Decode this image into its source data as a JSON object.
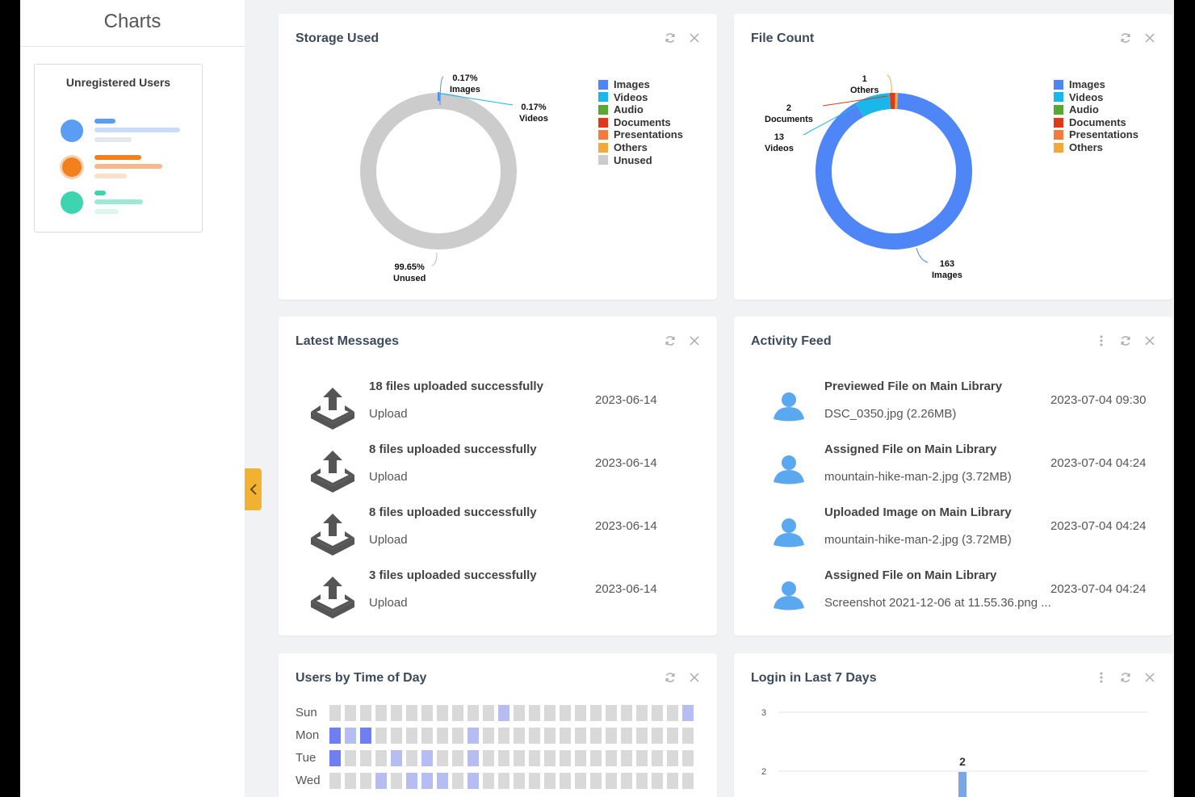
{
  "sidebar": {
    "title": "Charts",
    "card_title": "Unregistered Users"
  },
  "colors": {
    "images": "#4f86f7",
    "videos": "#1ab7ea",
    "audio": "#58a832",
    "documents": "#dc3a1a",
    "presentations": "#f77a3d",
    "others": "#f2a93b",
    "unused": "#cccccc",
    "accent_tab": "#f0b230",
    "heat_low": "#b6bdf3",
    "heat_high": "#6f7ef0"
  },
  "storage": {
    "title": "Storage Used",
    "legend": [
      "Images",
      "Videos",
      "Audio",
      "Documents",
      "Presentations",
      "Others",
      "Unused"
    ],
    "labels": {
      "images_pct": "0.17%",
      "images_name": "Images",
      "videos_pct": "0.17%",
      "videos_name": "Videos",
      "unused_pct": "99.65%",
      "unused_name": "Unused"
    }
  },
  "filecount": {
    "title": "File Count",
    "legend": [
      "Images",
      "Videos",
      "Audio",
      "Documents",
      "Presentations",
      "Others"
    ],
    "labels": {
      "others_n": "1",
      "others_name": "Others",
      "docs_n": "2",
      "docs_name": "Documents",
      "videos_n": "13",
      "videos_name": "Videos",
      "images_n": "163",
      "images_name": "Images"
    }
  },
  "chart_data": [
    {
      "type": "pie",
      "title": "Storage Used",
      "categories": [
        "Images",
        "Videos",
        "Unused"
      ],
      "values": [
        0.17,
        0.17,
        99.65
      ],
      "unit": "%"
    },
    {
      "type": "pie",
      "title": "File Count",
      "categories": [
        "Images",
        "Videos",
        "Documents",
        "Others"
      ],
      "values": [
        163,
        13,
        2,
        1
      ]
    }
  ],
  "messages": {
    "title": "Latest Messages",
    "items": [
      {
        "title": "18 files uploaded successfully",
        "sub": "Upload",
        "date": "2023-06-14"
      },
      {
        "title": "8 files uploaded successfully",
        "sub": "Upload",
        "date": "2023-06-14"
      },
      {
        "title": "8 files uploaded successfully",
        "sub": "Upload",
        "date": "2023-06-14"
      },
      {
        "title": "3 files uploaded successfully",
        "sub": "Upload",
        "date": "2023-06-14"
      }
    ]
  },
  "activity": {
    "title": "Activity Feed",
    "items": [
      {
        "title": "Previewed File on Main Library",
        "sub": "DSC_0350.jpg (2.26MB)",
        "date": "2023-07-04 09:30"
      },
      {
        "title": "Assigned File on Main Library",
        "sub": "mountain-hike-man-2.jpg (3.72MB)",
        "date": "2023-07-04 04:24"
      },
      {
        "title": "Uploaded Image on Main Library",
        "sub": "mountain-hike-man-2.jpg (3.72MB)",
        "date": "2023-07-04 04:24"
      },
      {
        "title": "Assigned File on Main Library",
        "sub": "Screenshot 2021-12-06 at 11.55.36.png ...",
        "date": "2023-07-04 04:24"
      }
    ]
  },
  "usersbytime": {
    "title": "Users by Time of Day",
    "days": [
      "Sun",
      "Mon",
      "Tue",
      "Wed"
    ],
    "levels": [
      [
        0,
        0,
        0,
        0,
        0,
        0,
        0,
        0,
        0,
        0,
        0,
        1,
        0,
        0,
        0,
        0,
        0,
        0,
        0,
        0,
        0,
        0,
        0,
        1
      ],
      [
        2,
        1,
        2,
        0,
        0,
        0,
        0,
        0,
        0,
        1,
        0,
        0,
        0,
        0,
        0,
        0,
        0,
        0,
        0,
        0,
        0,
        0,
        0,
        0
      ],
      [
        2,
        0,
        0,
        0,
        1,
        0,
        1,
        0,
        0,
        1,
        0,
        0,
        0,
        0,
        0,
        0,
        0,
        0,
        0,
        0,
        0,
        0,
        0,
        0
      ],
      [
        0,
        0,
        0,
        1,
        0,
        1,
        1,
        1,
        0,
        1,
        0,
        0,
        0,
        0,
        0,
        0,
        0,
        0,
        0,
        0,
        0,
        0,
        0,
        0
      ]
    ]
  },
  "logins": {
    "title": "Login in Last 7 Days",
    "y_tick_3": "3",
    "y_tick_2": "2",
    "bar_label": "2"
  }
}
